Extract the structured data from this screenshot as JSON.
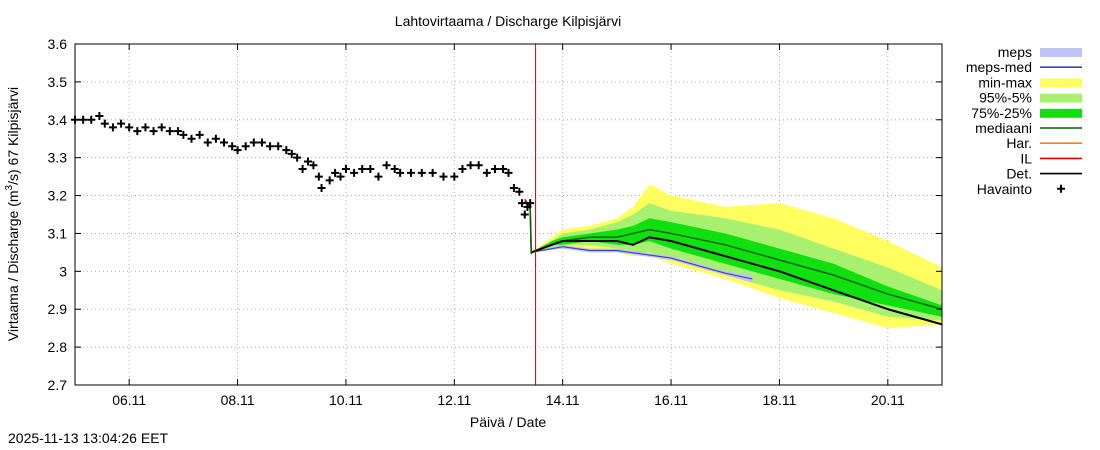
{
  "timestamp": "2025-11-13 13:04:26 EET",
  "chart_data": {
    "type": "line",
    "title": "Lahtovirtaama / Discharge  Kilpisjärvi",
    "xlabel": "Päivä / Date",
    "ylabel_prefix": "Virtaama / Discharge (m",
    "ylabel_sup": "3",
    "ylabel_suffix": "/s)  67 Kilpisjärvi",
    "xlim_days": [
      0,
      16
    ],
    "ylim": [
      2.7,
      3.6
    ],
    "x_ticks": [
      {
        "day": 1,
        "label": "06.11"
      },
      {
        "day": 3,
        "label": "08.11"
      },
      {
        "day": 5,
        "label": "10.11"
      },
      {
        "day": 7,
        "label": "12.11"
      },
      {
        "day": 9,
        "label": "14.11"
      },
      {
        "day": 11,
        "label": "16.11"
      },
      {
        "day": 13,
        "label": "18.11"
      },
      {
        "day": 15,
        "label": "20.11"
      }
    ],
    "y_ticks": [
      "2.7",
      "2.8",
      "2.9",
      "3",
      "3.1",
      "3.2",
      "3.3",
      "3.4",
      "3.5",
      "3.6"
    ],
    "y_tick_values": [
      2.7,
      2.8,
      2.9,
      3.0,
      3.1,
      3.2,
      3.3,
      3.4,
      3.5,
      3.6
    ],
    "forecast_start_day": 8.5,
    "legend": [
      {
        "label": "meps",
        "kind": "box",
        "color": "#c0c4f4"
      },
      {
        "label": "meps-med",
        "kind": "line",
        "color": "#4040c0"
      },
      {
        "label": "min-max",
        "kind": "box",
        "color": "#ffff60"
      },
      {
        "label": "95%-5%",
        "kind": "box",
        "color": "#a8f070"
      },
      {
        "label": "75%-25%",
        "kind": "box",
        "color": "#10e010"
      },
      {
        "label": "mediaani",
        "kind": "line",
        "color": "#006400"
      },
      {
        "label": "Har.",
        "kind": "line",
        "color": "#ff8000"
      },
      {
        "label": "IL",
        "kind": "line",
        "color": "#dd0000"
      },
      {
        "label": "Det.",
        "kind": "line",
        "color": "#000000"
      },
      {
        "label": "Havainto",
        "kind": "plus",
        "color": "#000000"
      }
    ],
    "observations": [
      [
        0.0,
        3.4
      ],
      [
        0.15,
        3.4
      ],
      [
        0.3,
        3.4
      ],
      [
        0.45,
        3.41
      ],
      [
        0.55,
        3.39
      ],
      [
        0.7,
        3.38
      ],
      [
        0.85,
        3.39
      ],
      [
        1.0,
        3.38
      ],
      [
        1.15,
        3.37
      ],
      [
        1.3,
        3.38
      ],
      [
        1.45,
        3.37
      ],
      [
        1.6,
        3.38
      ],
      [
        1.75,
        3.37
      ],
      [
        1.9,
        3.37
      ],
      [
        2.0,
        3.36
      ],
      [
        2.15,
        3.35
      ],
      [
        2.3,
        3.36
      ],
      [
        2.45,
        3.34
      ],
      [
        2.6,
        3.35
      ],
      [
        2.75,
        3.34
      ],
      [
        2.9,
        3.33
      ],
      [
        3.0,
        3.32
      ],
      [
        3.15,
        3.33
      ],
      [
        3.3,
        3.34
      ],
      [
        3.45,
        3.34
      ],
      [
        3.6,
        3.33
      ],
      [
        3.75,
        3.33
      ],
      [
        3.9,
        3.32
      ],
      [
        4.0,
        3.31
      ],
      [
        4.1,
        3.3
      ],
      [
        4.2,
        3.27
      ],
      [
        4.3,
        3.29
      ],
      [
        4.4,
        3.28
      ],
      [
        4.5,
        3.25
      ],
      [
        4.55,
        3.22
      ],
      [
        4.7,
        3.24
      ],
      [
        4.8,
        3.26
      ],
      [
        4.9,
        3.25
      ],
      [
        5.0,
        3.27
      ],
      [
        5.15,
        3.26
      ],
      [
        5.3,
        3.27
      ],
      [
        5.45,
        3.27
      ],
      [
        5.6,
        3.25
      ],
      [
        5.75,
        3.28
      ],
      [
        5.9,
        3.27
      ],
      [
        6.0,
        3.26
      ],
      [
        6.2,
        3.26
      ],
      [
        6.4,
        3.26
      ],
      [
        6.6,
        3.26
      ],
      [
        6.8,
        3.25
      ],
      [
        7.0,
        3.25
      ],
      [
        7.15,
        3.27
      ],
      [
        7.3,
        3.28
      ],
      [
        7.45,
        3.28
      ],
      [
        7.6,
        3.26
      ],
      [
        7.75,
        3.27
      ],
      [
        7.9,
        3.27
      ],
      [
        8.0,
        3.26
      ],
      [
        8.1,
        3.22
      ],
      [
        8.2,
        3.21
      ],
      [
        8.25,
        3.18
      ],
      [
        8.3,
        3.15
      ],
      [
        8.35,
        3.17
      ],
      [
        8.4,
        3.18
      ]
    ],
    "recent_spike": [
      [
        8.3,
        3.19
      ],
      [
        8.4,
        3.17
      ],
      [
        8.42,
        3.05
      ]
    ],
    "forecast_x": [
      8.42,
      8.8,
      9.0,
      9.5,
      10.0,
      10.3,
      10.6,
      11.0,
      12.0,
      13.0,
      14.0,
      15.0,
      16.0
    ],
    "minmax_upper": [
      3.05,
      3.09,
      3.11,
      3.12,
      3.14,
      3.17,
      3.23,
      3.2,
      3.17,
      3.18,
      3.14,
      3.08,
      3.01
    ],
    "minmax_lower": [
      3.05,
      3.06,
      3.06,
      3.06,
      3.05,
      3.04,
      3.04,
      3.02,
      2.98,
      2.93,
      2.89,
      2.85,
      2.86
    ],
    "p95_upper": [
      3.05,
      3.08,
      3.1,
      3.11,
      3.13,
      3.15,
      3.18,
      3.16,
      3.14,
      3.11,
      3.06,
      3.01,
      2.95
    ],
    "p95_lower": [
      3.05,
      3.06,
      3.07,
      3.07,
      3.06,
      3.05,
      3.05,
      3.03,
      2.99,
      2.95,
      2.92,
      2.88,
      2.87
    ],
    "p75_upper": [
      3.05,
      3.08,
      3.09,
      3.1,
      3.11,
      3.12,
      3.14,
      3.13,
      3.1,
      3.06,
      3.02,
      2.96,
      2.91
    ],
    "p75_lower": [
      3.05,
      3.07,
      3.07,
      3.08,
      3.07,
      3.07,
      3.08,
      3.06,
      3.02,
      2.98,
      2.94,
      2.91,
      2.88
    ],
    "median": [
      3.05,
      3.07,
      3.08,
      3.09,
      3.09,
      3.1,
      3.11,
      3.1,
      3.07,
      3.03,
      2.99,
      2.94,
      2.9
    ],
    "det": [
      3.05,
      3.07,
      3.08,
      3.08,
      3.08,
      3.07,
      3.09,
      3.08,
      3.04,
      3.0,
      2.95,
      2.9,
      2.86
    ],
    "meps_x": [
      8.42,
      9.0,
      9.5,
      10.0,
      10.5,
      11.0,
      11.5,
      12.0,
      12.5
    ],
    "meps_upper": [
      3.05,
      3.07,
      3.06,
      3.06,
      3.05,
      3.04,
      3.02,
      3.0,
      2.99
    ],
    "meps_lower": [
      3.05,
      3.06,
      3.05,
      3.05,
      3.04,
      3.03,
      3.01,
      2.99,
      2.97
    ],
    "meps_med": [
      3.05,
      3.065,
      3.055,
      3.055,
      3.045,
      3.035,
      3.015,
      2.995,
      2.98
    ]
  }
}
